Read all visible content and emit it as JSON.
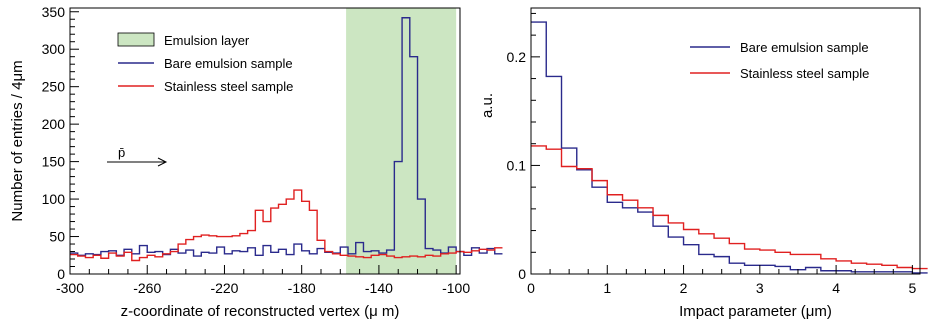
{
  "chart_data": [
    {
      "type": "line",
      "step": true,
      "xlabel": "z-coordinate of reconstructed vertex (μ m)",
      "ylabel": "Number of entries / 4μm",
      "xlim": [
        -300,
        -98
      ],
      "ylim": [
        0,
        355
      ],
      "x_ticks": [
        -300,
        -260,
        -220,
        -180,
        -140,
        -100
      ],
      "x_tick_labels": [
        "-300",
        "-260",
        "-220",
        "-180",
        "-140",
        "-100"
      ],
      "y_ticks": [
        0,
        50,
        100,
        150,
        200,
        250,
        300,
        350
      ],
      "y_tick_labels": [
        "0",
        "50",
        "100",
        "150",
        "200",
        "250",
        "300",
        "350"
      ],
      "legend_position": "top-left",
      "annotation": "p̄",
      "shaded_region": {
        "name": "Emulsion layer",
        "x0": -157,
        "x1": -100,
        "color": "#cce6c2"
      },
      "series": [
        {
          "name": "Bare emulsion sample",
          "color": "#2a2a8c",
          "bin_width": 4,
          "x_start": -300,
          "values": [
            28,
            25,
            27,
            26,
            30,
            31,
            25,
            33,
            27,
            38,
            29,
            30,
            26,
            33,
            28,
            32,
            24,
            29,
            28,
            36,
            27,
            31,
            30,
            35,
            25,
            38,
            29,
            33,
            26,
            40,
            31,
            27,
            34,
            29,
            28,
            36,
            27,
            42,
            30,
            31,
            28,
            32,
            150,
            342,
            290,
            100,
            34,
            32,
            28,
            36,
            30,
            25,
            35,
            28,
            34,
            27
          ]
        },
        {
          "name": "Stainless steel sample",
          "color": "#e02020",
          "bin_width": 4,
          "x_start": -300,
          "values": [
            26,
            24,
            22,
            25,
            21,
            28,
            24,
            29,
            18,
            22,
            25,
            23,
            27,
            30,
            40,
            46,
            50,
            52,
            51,
            50,
            50,
            51,
            54,
            58,
            85,
            70,
            88,
            93,
            100,
            112,
            97,
            85,
            45,
            30,
            27,
            25,
            24,
            23,
            22,
            25,
            26,
            24,
            22,
            23,
            24,
            23,
            25,
            24,
            27,
            28,
            30,
            29,
            31,
            33,
            32,
            35
          ]
        }
      ]
    },
    {
      "type": "line",
      "step": true,
      "xlabel": "Impact parameter (μm)",
      "ylabel": "a.u.",
      "xlim": [
        0,
        5.1
      ],
      "ylim": [
        0,
        0.245
      ],
      "x_ticks": [
        0,
        1,
        2,
        3,
        4,
        5
      ],
      "x_tick_labels": [
        "0",
        "1",
        "2",
        "3",
        "4",
        "5"
      ],
      "y_ticks": [
        0,
        0.1,
        0.2
      ],
      "y_tick_labels": [
        "0",
        "0.1",
        "0.2"
      ],
      "legend_position": "top-right",
      "series": [
        {
          "name": "Bare emulsion sample",
          "color": "#2a2a8c",
          "bin_width": 0.2,
          "x_start": 0,
          "values": [
            0.232,
            0.182,
            0.116,
            0.096,
            0.08,
            0.066,
            0.061,
            0.057,
            0.044,
            0.034,
            0.027,
            0.018,
            0.016,
            0.01,
            0.008,
            0.008,
            0.007,
            0.004,
            0.006,
            0.003,
            0.003,
            0.002,
            0.002,
            0.002,
            0.002,
            0.001
          ]
        },
        {
          "name": "Stainless steel sample",
          "color": "#e02020",
          "bin_width": 0.2,
          "x_start": 0,
          "values": [
            0.118,
            0.115,
            0.099,
            0.097,
            0.086,
            0.073,
            0.068,
            0.061,
            0.054,
            0.047,
            0.041,
            0.037,
            0.033,
            0.028,
            0.023,
            0.022,
            0.02,
            0.018,
            0.018,
            0.014,
            0.012,
            0.01,
            0.009,
            0.008,
            0.006,
            0.005
          ]
        }
      ]
    }
  ]
}
